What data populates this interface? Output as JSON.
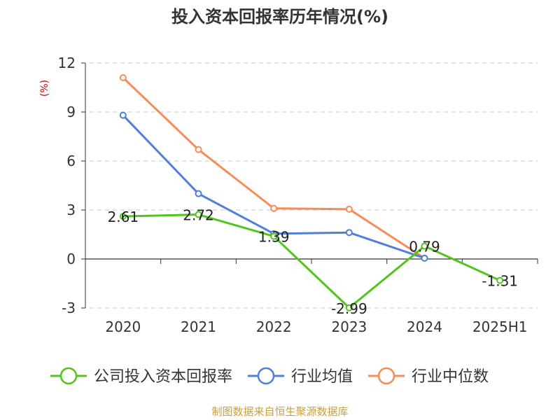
{
  "title": "投入资本回报率历年情况(%)",
  "source": "制图数据来自恒生聚源数据库",
  "chart_data": {
    "type": "line",
    "title": "投入资本回报率历年情况(%)",
    "ylabel": "(%)",
    "xlabel": "",
    "categories": [
      "2020",
      "2021",
      "2022",
      "2023",
      "2024",
      "2025H1"
    ],
    "yticks": [
      12,
      9,
      6,
      3,
      0,
      -3
    ],
    "ylim": [
      -3,
      12
    ],
    "grid": true,
    "legend_position": "bottom",
    "series": [
      {
        "name": "公司投入资本回报率",
        "color": "#52c41a",
        "values": [
          2.61,
          2.72,
          1.39,
          -2.99,
          0.79,
          -1.31
        ],
        "labels": [
          "2.61",
          "2.72",
          "1.39",
          "-2.99",
          "0.79",
          "-1.31"
        ]
      },
      {
        "name": "行业均值",
        "color": "#4f7fdc",
        "values": [
          8.8,
          4.0,
          1.55,
          1.62,
          0.05,
          null
        ]
      },
      {
        "name": "行业中位数",
        "color": "#f58c5a",
        "values": [
          11.1,
          6.7,
          3.1,
          3.05,
          0.05,
          null
        ]
      }
    ]
  }
}
